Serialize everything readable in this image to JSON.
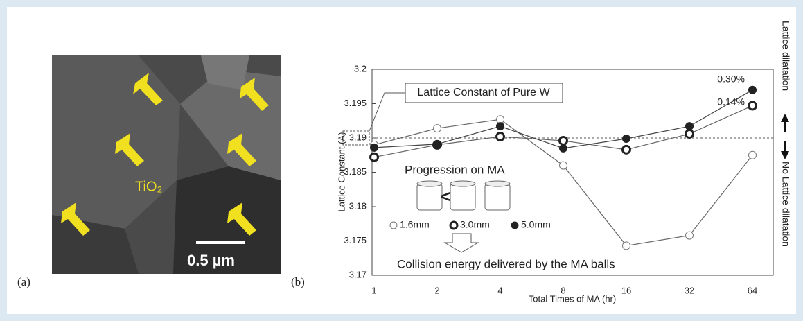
{
  "figure_a": {
    "panel_label": "(a)",
    "particle_label": "TiO₂",
    "scale_bar": "0.5 µm"
  },
  "panel_b_label": "(b)",
  "chart_data": {
    "type": "line",
    "x_label": "Total Times of MA (hr)",
    "y_label": "Lattice Constant (A)",
    "categories": [
      "1",
      "2",
      "4",
      "8",
      "16",
      "32",
      "64"
    ],
    "series": [
      {
        "name": "1.6mm",
        "marker": "open",
        "color": "#666666",
        "values": [
          3.189,
          3.1914,
          3.1927,
          3.186,
          3.1743,
          3.1758,
          3.1875
        ]
      },
      {
        "name": "3.0mm",
        "marker": "ring",
        "color": "#666666",
        "values": [
          3.1872,
          3.189,
          3.1902,
          3.1896,
          3.1883,
          3.1906,
          3.1947
        ]
      },
      {
        "name": "5.0mm",
        "marker": "filled",
        "color": "#444444",
        "values": [
          3.1886,
          3.1891,
          3.1917,
          3.1885,
          3.1899,
          3.1917,
          3.197
        ]
      }
    ],
    "ylim": [
      3.17,
      3.2
    ],
    "yticks": [
      3.17,
      3.175,
      3.18,
      3.185,
      3.19,
      3.195,
      3.2
    ],
    "reference": {
      "value": 3.19,
      "label": "Lattice Constant of Pure W"
    },
    "annotations": [
      "0.30%",
      "0.14%",
      "Progression on MA",
      "<",
      "Collision energy delivered by the MA balls"
    ],
    "right_labels": [
      "Lattice dilatation",
      "No Lattice dilatation"
    ]
  }
}
